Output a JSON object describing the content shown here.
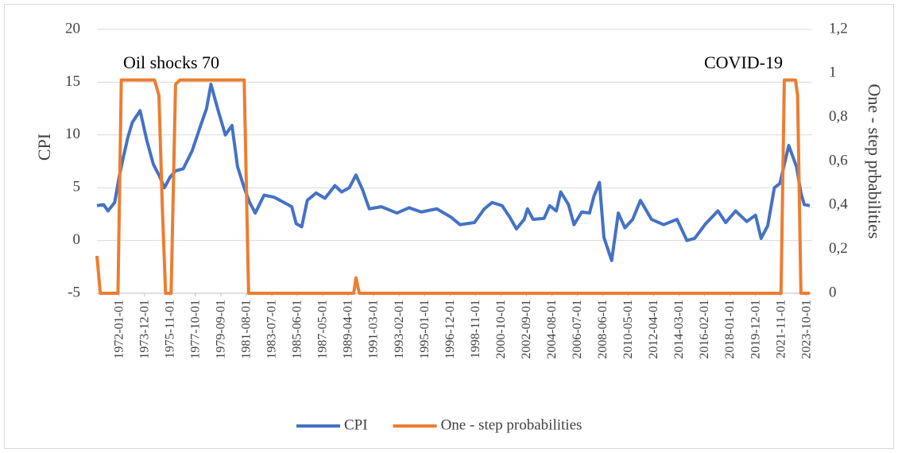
{
  "chart_data": {
    "type": "line",
    "xlim": [
      "1970-05-01",
      "2024-01-01"
    ],
    "xticks": [
      "1972-01-01",
      "1973-12-01",
      "1975-11-01",
      "1977-10-01",
      "1979-09-01",
      "1981-08-01",
      "1983-07-01",
      "1985-06-01",
      "1987-05-01",
      "1989-04-01",
      "1991-03-01",
      "1993-02-01",
      "1995-01-01",
      "1996-12-01",
      "1998-11-01",
      "2000-10-01",
      "2002-09-01",
      "2004-08-01",
      "2006-07-01",
      "2008-06-01",
      "2010-05-01",
      "2012-04-01",
      "2014-03-01",
      "2016-02-01",
      "2018-01-01",
      "2019-12-01",
      "2021-11-01",
      "2023-10-01"
    ],
    "ylim": [
      -5,
      20
    ],
    "yticks": [
      -5,
      0,
      5,
      10,
      15,
      20
    ],
    "y2lim": [
      0,
      1.2
    ],
    "y2ticks": [
      0,
      {
        "value": 0.2,
        "label": "0,2"
      },
      {
        "value": 0.4,
        "label": "0,4"
      },
      {
        "value": 0.6,
        "label": "0,6"
      },
      {
        "value": 0.8,
        "label": "0,8"
      },
      1,
      {
        "value": 1.2,
        "label": "1,2"
      }
    ],
    "ylabel": "CPI",
    "y2label": "One - step prbabilities",
    "grid": true,
    "legend": "bottom",
    "annotations": [
      "Oil shocks 70",
      "COVID-19"
    ],
    "series": [
      {
        "name": "CPI",
        "color": "#4472c4",
        "x": [
          "1970-05-01",
          "1970-11-01",
          "1971-03-01",
          "1971-09-01",
          "1972-01-01",
          "1972-04-01",
          "1972-09-01",
          "1973-01-01",
          "1973-08-01",
          "1974-02-01",
          "1974-08-01",
          "1975-01-01",
          "1975-06-01",
          "1975-11-01",
          "1976-04-01",
          "1976-11-01",
          "1977-07-01",
          "1978-03-01",
          "1978-08-01",
          "1978-12-01",
          "1979-06-01",
          "1980-01-01",
          "1980-07-01",
          "1980-12-01",
          "1981-06-01",
          "1981-11-01",
          "1982-04-01",
          "1982-12-01",
          "1983-09-01",
          "1984-06-01",
          "1985-01-01",
          "1985-05-01",
          "1985-10-01",
          "1986-03-01",
          "1986-11-01",
          "1987-07-01",
          "1988-04-01",
          "1988-10-01",
          "1989-05-01",
          "1989-11-01",
          "1990-05-01",
          "1990-11-01",
          "1991-10-01",
          "1992-12-01",
          "1993-11-01",
          "1994-10-01",
          "1995-12-01",
          "1997-01-01",
          "1997-09-01",
          "1998-10-01",
          "1999-07-01",
          "2000-02-01",
          "2000-11-01",
          "2001-06-01",
          "2001-12-01",
          "2002-07-01",
          "2002-10-01",
          "2003-03-01",
          "2004-01-01",
          "2004-06-01",
          "2004-12-01",
          "2005-04-01",
          "2005-11-01",
          "2006-04-01",
          "2006-11-01",
          "2007-06-01",
          "2007-10-01",
          "2008-03-01",
          "2008-07-01",
          "2009-02-01",
          "2009-08-01",
          "2010-02-01",
          "2010-09-01",
          "2011-04-01",
          "2012-02-01",
          "2013-01-01",
          "2014-01-01",
          "2014-10-01",
          "2015-05-01",
          "2016-03-01",
          "2017-02-01",
          "2017-09-01",
          "2018-06-01",
          "2019-04-01",
          "2019-12-01",
          "2020-05-01",
          "2020-11-01",
          "2021-05-01",
          "2021-10-01",
          "2022-02-01",
          "2022-06-01",
          "2023-01-01",
          "2023-05-01",
          "2023-08-01",
          "2024-01-01"
        ],
        "values": [
          3.3,
          3.4,
          2.8,
          3.6,
          6.0,
          7.5,
          9.8,
          11.2,
          12.3,
          9.5,
          7.2,
          6.2,
          5.0,
          6.0,
          6.6,
          6.8,
          8.5,
          11.0,
          12.5,
          14.8,
          12.5,
          10.0,
          10.9,
          7.0,
          5.0,
          3.6,
          2.6,
          4.3,
          4.1,
          3.6,
          3.2,
          1.6,
          1.3,
          3.8,
          4.5,
          4.0,
          5.2,
          4.6,
          5.0,
          6.2,
          4.8,
          3.0,
          3.2,
          2.6,
          3.1,
          2.7,
          3.0,
          2.2,
          1.5,
          1.7,
          3.0,
          3.6,
          3.3,
          2.2,
          1.1,
          2.0,
          3.0,
          2.0,
          2.1,
          3.3,
          2.8,
          4.6,
          3.4,
          1.5,
          2.7,
          2.6,
          4.2,
          5.5,
          0.3,
          -1.9,
          2.6,
          1.2,
          2.0,
          3.8,
          2.0,
          1.5,
          2.0,
          0.0,
          0.2,
          1.6,
          2.8,
          1.7,
          2.8,
          1.8,
          2.4,
          0.2,
          1.4,
          5.0,
          5.4,
          7.2,
          9.0,
          7.0,
          4.5,
          3.4,
          3.3
        ]
      },
      {
        "name": "One - step probabilities",
        "color": "#ed7d31",
        "axis": "y2",
        "x": [
          "1970-05-01",
          "1970-08-01",
          "1971-12-01",
          "1972-03-01",
          "1974-09-01",
          "1975-01-01",
          "1975-04-01",
          "1975-07-01",
          "1975-12-01",
          "1976-04-01",
          "1976-08-01",
          "1981-06-01",
          "1981-10-01",
          "1989-09-01",
          "1989-11-01",
          "1990-02-01",
          "2021-11-01",
          "2022-02-01",
          "2022-12-01",
          "2023-02-01",
          "2023-05-01",
          "2024-01-01"
        ],
        "values": [
          0.17,
          0.0,
          0.0,
          0.97,
          0.97,
          0.9,
          0.4,
          0.0,
          0.0,
          0.95,
          0.97,
          0.97,
          0.0,
          0.0,
          0.07,
          0.0,
          0.0,
          0.97,
          0.97,
          0.9,
          0.0,
          0.0
        ]
      }
    ]
  }
}
